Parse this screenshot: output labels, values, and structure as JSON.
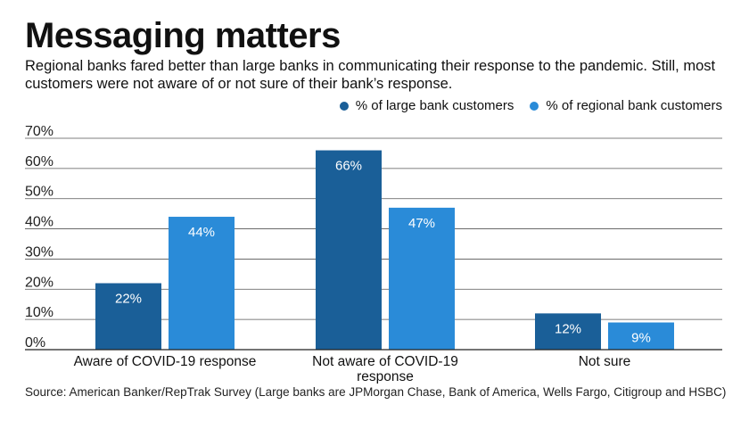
{
  "title": "Messaging matters",
  "subtitle": "Regional banks fared better than large banks in communicating their response to the pandemic. Still, most customers were not aware of or not sure of their bank’s response.",
  "source": "Source: American Banker/RepTrak Survey (Large banks are JPMorgan Chase, Bank of America, Wells Fargo, Citigroup and HSBC)",
  "colors": {
    "large": "#1a5f98",
    "regional": "#2a8bd8",
    "grid": "#555555",
    "axis": "#222222"
  },
  "chart_data": {
    "type": "bar",
    "title": "Messaging matters",
    "categories": [
      [
        "Aware of COVID-19 response"
      ],
      [
        "Not aware of COVID-19",
        "response"
      ],
      [
        "Not sure"
      ]
    ],
    "series": [
      {
        "name": "% of large bank customers",
        "values": [
          22,
          66,
          12
        ],
        "labels": [
          "22%",
          "66%",
          "12%"
        ]
      },
      {
        "name": "% of regional bank customers",
        "values": [
          44,
          47,
          9
        ],
        "labels": [
          "44%",
          "47%",
          "9%"
        ]
      }
    ],
    "ylim": [
      0,
      70
    ],
    "yticks": [
      "0%",
      "10%",
      "20%",
      "30%",
      "40%",
      "50%",
      "60%",
      "70%"
    ],
    "grid": true,
    "legend_position": "top-right"
  }
}
